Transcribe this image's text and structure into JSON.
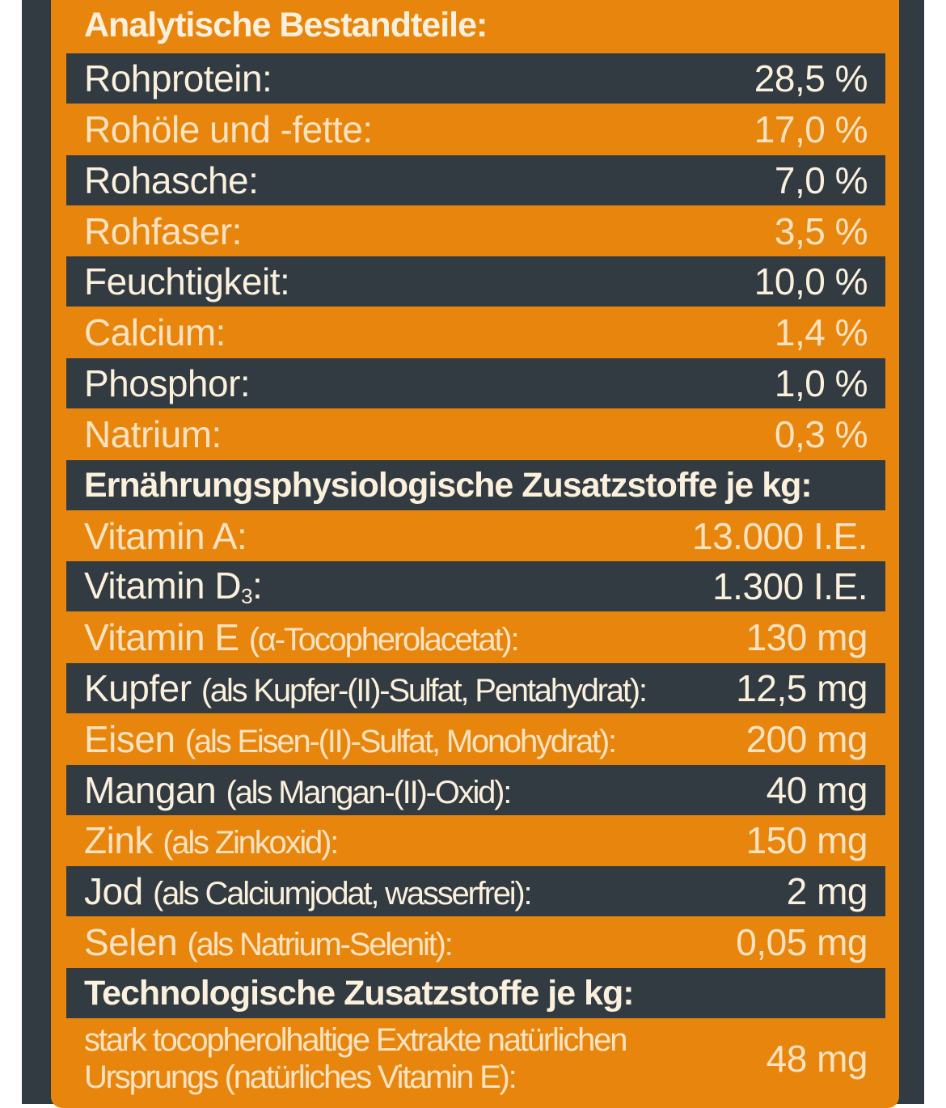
{
  "headings": {
    "analytic": "Analytische Bestandteile:",
    "nutritional": "Ernährungsphysiologische Zusatzstoffe je kg:",
    "technological": "Technologische Zusatzstoffe je kg:"
  },
  "analytic_rows": [
    {
      "label": "Rohprotein:",
      "value": "28,5 %"
    },
    {
      "label": "Rohöle und -fette:",
      "value": "17,0 %"
    },
    {
      "label": "Rohasche:",
      "value": "7,0 %"
    },
    {
      "label": "Rohfaser:",
      "value": "3,5 %"
    },
    {
      "label": "Feuchtigkeit:",
      "value": "10,0 %"
    },
    {
      "label": "Calcium:",
      "value": "1,4 %"
    },
    {
      "label": "Phosphor:",
      "value": "1,0 %"
    },
    {
      "label": "Natrium:",
      "value": "0,3 %"
    }
  ],
  "nutritional_rows": [
    {
      "label": "Vitamin A:",
      "detail": "",
      "value": "13.000 I.E."
    },
    {
      "label": "Vitamin D",
      "sub": "3",
      "suffix": ":",
      "detail": "",
      "value": "1.300 I.E."
    },
    {
      "label": "Vitamin E",
      "detail": "(α-Tocopherolacetat):",
      "value": "130 mg"
    },
    {
      "label": "Kupfer",
      "detail": "(als Kupfer-(II)-Sulfat, Pentahydrat):",
      "value": "12,5 mg"
    },
    {
      "label": "Eisen",
      "detail": "(als Eisen-(II)-Sulfat, Monohydrat):",
      "value": "200 mg"
    },
    {
      "label": "Mangan",
      "detail": "(als Mangan-(II)-Oxid):",
      "value": "40 mg"
    },
    {
      "label": "Zink",
      "detail": "(als Zinkoxid):",
      "value": "150 mg"
    },
    {
      "label": "Jod",
      "detail": "(als Calciumjodat, wasserfrei):",
      "value": "2 mg"
    },
    {
      "label": "Selen",
      "detail": "(als Natrium-Selenit):",
      "value": "0,05 mg"
    }
  ],
  "technological_row": {
    "line1": "stark tocopherolhaltige Extrakte natürlichen",
    "line2": "Ursprungs (natürliches Vitamin E):",
    "value": "48 mg"
  },
  "colors": {
    "orange": "#e8850c",
    "dark": "#313b41",
    "text": "#fbf0dc"
  }
}
